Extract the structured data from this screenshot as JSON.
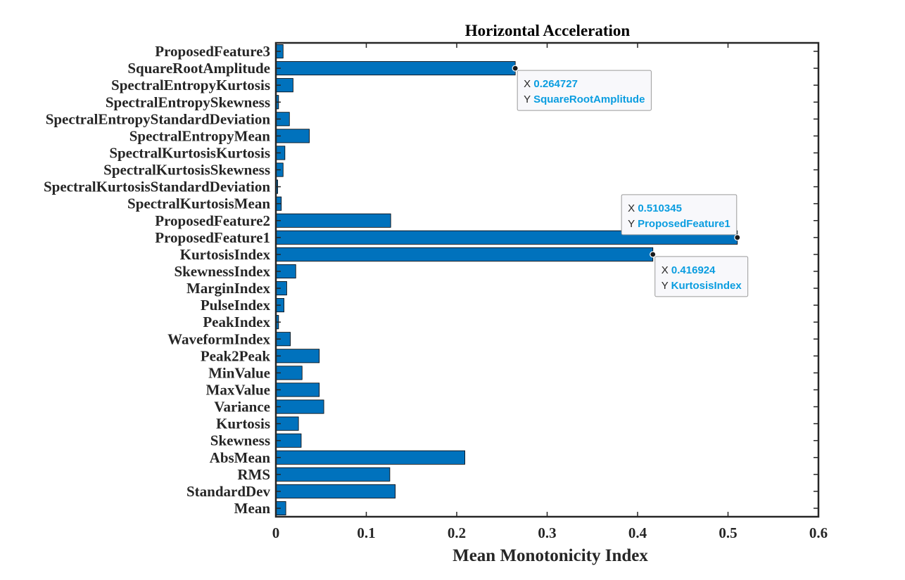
{
  "chart_data": {
    "type": "bar",
    "orientation": "horizontal",
    "title": "Horizontal Acceleration",
    "xlabel": "Mean Monotonicity Index",
    "ylabel": "",
    "xlim": [
      0,
      0.6
    ],
    "xticks": [
      "0",
      "0.1",
      "0.2",
      "0.3",
      "0.4",
      "0.5",
      "0.6"
    ],
    "bar_color": "#0072bd",
    "grid": false,
    "categories": [
      "Mean",
      "StandardDev",
      "RMS",
      "AbsMean",
      "Skewness",
      "Kurtosis",
      "Variance",
      "MaxValue",
      "MinValue",
      "Peak2Peak",
      "WaveformIndex",
      "PeakIndex",
      "PulseIndex",
      "MarginIndex",
      "SkewnessIndex",
      "KurtosisIndex",
      "ProposedFeature1",
      "ProposedFeature2",
      "SpectralKurtosisMean",
      "SpectralKurtosisStandardDeviation",
      "SpectralKurtosisSkewness",
      "SpectralKurtosisKurtosis",
      "SpectralEntropyMean",
      "SpectralEntropyStandardDeviation",
      "SpectralEntropySkewness",
      "SpectralEntropyKurtosis",
      "SquareRootAmplitude",
      "ProposedFeature3"
    ],
    "values": [
      0.011,
      0.132,
      0.126,
      0.209,
      0.028,
      0.025,
      0.053,
      0.048,
      0.029,
      0.048,
      0.016,
      0.003,
      0.009,
      0.012,
      0.022,
      0.416924,
      0.510345,
      0.127,
      0.006,
      0.002,
      0.008,
      0.01,
      0.037,
      0.015,
      0.003,
      0.019,
      0.264727,
      0.008
    ],
    "datatips": [
      {
        "category": "SquareRootAmplitude",
        "x_label": "X",
        "x_value": "0.264727",
        "y_label": "Y",
        "y_value": "SquareRootAmplitude",
        "placement": "below-right"
      },
      {
        "category": "ProposedFeature1",
        "x_label": "X",
        "x_value": "0.510345",
        "y_label": "Y",
        "y_value": "ProposedFeature1",
        "placement": "above-left"
      },
      {
        "category": "KurtosisIndex",
        "x_label": "X",
        "x_value": "0.416924",
        "y_label": "Y",
        "y_value": "KurtosisIndex",
        "placement": "below-right"
      }
    ]
  }
}
